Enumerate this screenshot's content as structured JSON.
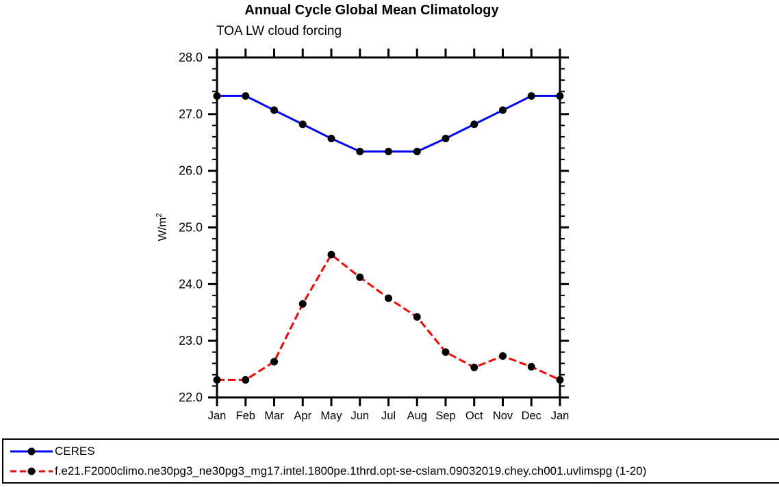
{
  "chart_data": {
    "type": "line",
    "title": "Annual Cycle Global Mean Climatology",
    "subtitle": "TOA LW cloud forcing",
    "ylabel": "W/m^2",
    "ylabel_base": "W/m",
    "ylabel_exponent": "2",
    "categories": [
      "Jan",
      "Feb",
      "Mar",
      "Apr",
      "May",
      "Jun",
      "Jul",
      "Aug",
      "Sep",
      "Oct",
      "Nov",
      "Dec",
      "Jan"
    ],
    "ylim": [
      22.0,
      28.0
    ],
    "y_major_tick_labels": [
      "22.0",
      "23.0",
      "24.0",
      "25.0",
      "26.0",
      "27.0",
      "28.0"
    ],
    "y_minor_step": 0.2,
    "grid": false,
    "axis_color": "#000000",
    "legend_position": "bottom-left-box",
    "series": [
      {
        "name": "CERES",
        "color": "#0000ff",
        "line_style": "solid",
        "marker": "filled-circle",
        "marker_color": "#000000",
        "values": [
          27.32,
          27.32,
          27.07,
          26.82,
          26.57,
          26.34,
          26.34,
          26.34,
          26.57,
          26.82,
          27.07,
          27.32,
          27.32
        ]
      },
      {
        "name": "f.e21.F2000climo.ne30pg3_ne30pg3_mg17.intel.1800pe.1thrd.opt-se-cslam.09032019.chey.ch001.uvlimspg (1-20)",
        "color": "#ff0000",
        "line_style": "dashed",
        "marker": "filled-circle",
        "marker_color": "#000000",
        "values": [
          22.31,
          22.31,
          22.63,
          23.65,
          24.52,
          24.12,
          23.75,
          23.42,
          22.8,
          22.53,
          22.73,
          22.54,
          22.31
        ]
      }
    ]
  }
}
